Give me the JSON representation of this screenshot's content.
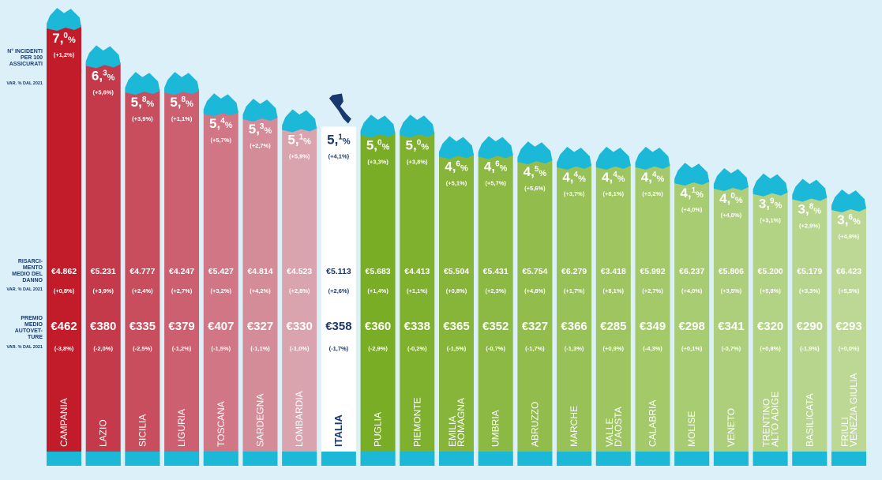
{
  "chart_data": {
    "type": "bar",
    "labels": {
      "incidenti": "N° INCIDENTI PER 100 ASSICURATI",
      "var_2021_a": "VAR. % DAL 2021",
      "risarcimento": "RISARCI-MENTO MEDIO DEL DANNO",
      "var_2021_b": "VAR. % DAL 2021",
      "premio": "PREMIO MEDIO AUTOVET-TURE",
      "var_2021_c": "VAR. % DAL 2021"
    },
    "regions": [
      {
        "name": "CAMPANIA",
        "incidenti": 7.0,
        "incidenti_int": "7,",
        "incidenti_dec": "0",
        "incidenti_var": "(+1,2%)",
        "risarcimento": "€4.862",
        "risarcimento_var": "(+0,8%)",
        "premio": "€462",
        "premio_var": "(-3,8%)",
        "color": "#c21c2b"
      },
      {
        "name": "LAZIO",
        "incidenti": 6.3,
        "incidenti_int": "6,",
        "incidenti_dec": "3",
        "incidenti_var": "(+5,6%)",
        "risarcimento": "€5.231",
        "risarcimento_var": "(+3,9%)",
        "premio": "€380",
        "premio_var": "(-2,0%)",
        "color": "#c43a4b"
      },
      {
        "name": "SICILIA",
        "incidenti": 5.8,
        "incidenti_int": "5,",
        "incidenti_dec": "8",
        "incidenti_var": "(+3,9%)",
        "risarcimento": "€4.777",
        "risarcimento_var": "(+2,4%)",
        "premio": "€335",
        "premio_var": "(-2,5%)",
        "color": "#c84e5e"
      },
      {
        "name": "LIGURIA",
        "incidenti": 5.8,
        "incidenti_int": "5,",
        "incidenti_dec": "8",
        "incidenti_var": "(+1,1%)",
        "risarcimento": "€4.247",
        "risarcimento_var": "(+2,7%)",
        "premio": "€379",
        "premio_var": "(-1,2%)",
        "color": "#cc6070"
      },
      {
        "name": "TOSCANA",
        "incidenti": 5.4,
        "incidenti_int": "5,",
        "incidenti_dec": "4",
        "incidenti_var": "(+5,7%)",
        "risarcimento": "€5.427",
        "risarcimento_var": "(+3,2%)",
        "premio": "€407",
        "premio_var": "(-1,5%)",
        "color": "#d07684"
      },
      {
        "name": "SARDEGNA",
        "incidenti": 5.3,
        "incidenti_int": "5,",
        "incidenti_dec": "3",
        "incidenti_var": "(+2,7%)",
        "risarcimento": "€4.814",
        "risarcimento_var": "(+4,2%)",
        "premio": "€327",
        "premio_var": "(-1,1%)",
        "color": "#d48c98"
      },
      {
        "name": "LOMBARDIA",
        "incidenti": 5.1,
        "incidenti_int": "5,",
        "incidenti_dec": "1",
        "incidenti_var": "(+5,9%)",
        "risarcimento": "€4.523",
        "risarcimento_var": "(+2,8%)",
        "premio": "€330",
        "premio_var": "(-1,0%)",
        "color": "#d9a4ae"
      },
      {
        "name": "ITALIA",
        "incidenti": 5.1,
        "incidenti_int": "5,",
        "incidenti_dec": "1",
        "incidenti_var": "(+4,1%)",
        "risarcimento": "€5.113",
        "risarcimento_var": "(+2,6%)",
        "premio": "€358",
        "premio_var": "(-1,7%)",
        "color": "#ffffff"
      },
      {
        "name": "PUGLIA",
        "incidenti": 5.0,
        "incidenti_int": "5,",
        "incidenti_dec": "0",
        "incidenti_var": "(+3,3%)",
        "risarcimento": "€5.683",
        "risarcimento_var": "(+1,4%)",
        "premio": "€360",
        "premio_var": "(-2,9%)",
        "color": "#79ad26"
      },
      {
        "name": "PIEMONTE",
        "incidenti": 5.0,
        "incidenti_int": "5,",
        "incidenti_dec": "0",
        "incidenti_var": "(+3,8%)",
        "risarcimento": "€4.413",
        "risarcimento_var": "(+1,1%)",
        "premio": "€338",
        "premio_var": "(-0,2%)",
        "color": "#7fb12f"
      },
      {
        "name": "EMILIA ROMAGNA",
        "incidenti": 4.6,
        "incidenti_int": "4,",
        "incidenti_dec": "6",
        "incidenti_var": "(+5,1%)",
        "risarcimento": "€5.504",
        "risarcimento_var": "(+0,8%)",
        "premio": "€365",
        "premio_var": "(-1,5%)",
        "color": "#86b53a"
      },
      {
        "name": "UMBRIA",
        "incidenti": 4.6,
        "incidenti_int": "4,",
        "incidenti_dec": "6",
        "incidenti_var": "(+5,7%)",
        "risarcimento": "€5.431",
        "risarcimento_var": "(+2,3%)",
        "premio": "€352",
        "premio_var": "(-0,7%)",
        "color": "#8cb944"
      },
      {
        "name": "ABRUZZO",
        "incidenti": 4.5,
        "incidenti_int": "4,",
        "incidenti_dec": "5",
        "incidenti_var": "(+5,6%)",
        "risarcimento": "€5.754",
        "risarcimento_var": "(+4,8%)",
        "premio": "€327",
        "premio_var": "(-1,7%)",
        "color": "#92bd4d"
      },
      {
        "name": "MARCHE",
        "incidenti": 4.4,
        "incidenti_int": "4,",
        "incidenti_dec": "4",
        "incidenti_var": "(+3,7%)",
        "risarcimento": "€6.279",
        "risarcimento_var": "(+1,7%)",
        "premio": "€366",
        "premio_var": "(-1,3%)",
        "color": "#98c157"
      },
      {
        "name": "VALLE D'AOSTA",
        "incidenti": 4.4,
        "incidenti_int": "4,",
        "incidenti_dec": "4",
        "incidenti_var": "(+8,1%)",
        "risarcimento": "€3.418",
        "risarcimento_var": "(+8,1%)",
        "premio": "€285",
        "premio_var": "(+0,9%)",
        "color": "#9ec560"
      },
      {
        "name": "CALABRIA",
        "incidenti": 4.4,
        "incidenti_int": "4,",
        "incidenti_dec": "4",
        "incidenti_var": "(+3,2%)",
        "risarcimento": "€5.992",
        "risarcimento_var": "(+2,7%)",
        "premio": "€349",
        "premio_var": "(-4,3%)",
        "color": "#a3c969"
      },
      {
        "name": "MOLISE",
        "incidenti": 4.1,
        "incidenti_int": "4,",
        "incidenti_dec": "1",
        "incidenti_var": "(+4,0%)",
        "risarcimento": "€6.237",
        "risarcimento_var": "(+4,0%)",
        "premio": "€298",
        "premio_var": "(+0,1%)",
        "color": "#a8cc72"
      },
      {
        "name": "VENETO",
        "incidenti": 4.0,
        "incidenti_int": "4,",
        "incidenti_dec": "0",
        "incidenti_var": "(+4,0%)",
        "risarcimento": "€5.806",
        "risarcimento_var": "(+3,5%)",
        "premio": "€341",
        "premio_var": "(-0,7%)",
        "color": "#adcf7b"
      },
      {
        "name": "TRENTINO ALTO ADIGE",
        "incidenti": 3.9,
        "incidenti_int": "3,",
        "incidenti_dec": "9",
        "incidenti_var": "(+3,1%)",
        "risarcimento": "€5.200",
        "risarcimento_var": "(+5,8%)",
        "premio": "€320",
        "premio_var": "(+0,8%)",
        "color": "#b2d284"
      },
      {
        "name": "BASILICATA",
        "incidenti": 3.8,
        "incidenti_int": "3,",
        "incidenti_dec": "8",
        "incidenti_var": "(+2,9%)",
        "risarcimento": "€5.179",
        "risarcimento_var": "(+3,3%)",
        "premio": "€290",
        "premio_var": "(-1,9%)",
        "color": "#b7d58c"
      },
      {
        "name": "FRIULI VENEZIA GIULIA",
        "incidenti": 3.6,
        "incidenti_int": "3,",
        "incidenti_dec": "6",
        "incidenti_var": "(+4,9%)",
        "risarcimento": "€6.423",
        "risarcimento_var": "(+5,5%)",
        "premio": "€293",
        "premio_var": "(+0,0%)",
        "color": "#bcd894"
      }
    ],
    "colors": {
      "map": "#1bb8d8",
      "italia_map": "#1a3870",
      "italia_text": "#1a3870",
      "bottom_strip": "#1bb8d8",
      "label_text": "#1d3c6c"
    }
  }
}
